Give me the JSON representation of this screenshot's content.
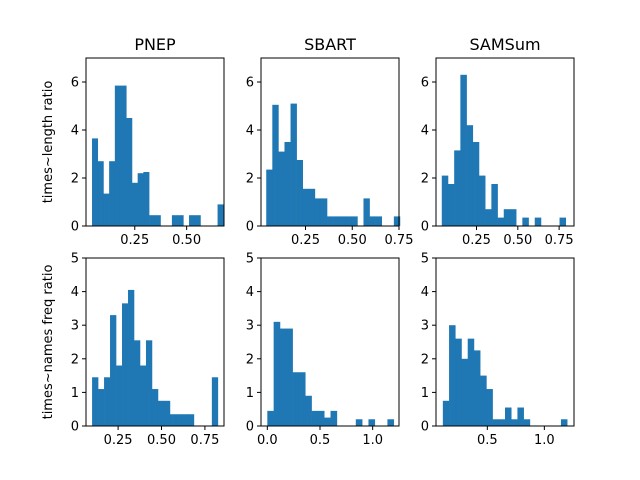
{
  "chart_data": [
    {
      "type": "bar",
      "title": "PNEP",
      "ylabel": "times~length ratio",
      "ylim": [
        0,
        7
      ],
      "yticks": [
        0,
        2,
        4,
        6
      ],
      "xlim": [
        0.015,
        0.68
      ],
      "xticks": [
        0.25,
        0.5
      ],
      "xtick_labels": [
        "0.25",
        "0.50"
      ],
      "bins": [
        0.044,
        0.0715,
        0.099,
        0.1265,
        0.154,
        0.1815,
        0.209,
        0.2365,
        0.264,
        0.2915,
        0.319,
        0.3465,
        0.374,
        0.4015,
        0.429,
        0.4565,
        0.484,
        0.5115,
        0.539,
        0.5665,
        0.594,
        0.6215,
        0.649
      ],
      "values": [
        3.65,
        2.7,
        1.35,
        2.7,
        5.85,
        5.85,
        4.5,
        1.8,
        2.2,
        2.25,
        0.45,
        0.45,
        0,
        0,
        0.45,
        0.45,
        0,
        0.45,
        0.45,
        0,
        0,
        0,
        0.9
      ]
    },
    {
      "type": "bar",
      "title": "SBART",
      "ylabel": "",
      "ylim": [
        0,
        7
      ],
      "yticks": [
        0,
        2,
        4,
        6
      ],
      "xlim": [
        0.012,
        0.75
      ],
      "xticks": [
        0.25,
        0.5,
        0.75
      ],
      "xtick_labels": [
        "0.25",
        "0.50",
        "0.75"
      ],
      "bins": [
        0.04,
        0.0725,
        0.105,
        0.1375,
        0.17,
        0.2025,
        0.235,
        0.2675,
        0.3,
        0.3325,
        0.365,
        0.3975,
        0.43,
        0.4625,
        0.495,
        0.5275,
        0.56,
        0.5925,
        0.625,
        0.6575,
        0.69,
        0.7225
      ],
      "values": [
        2.35,
        5.05,
        3.1,
        3.5,
        5.1,
        2.75,
        1.55,
        1.55,
        1.15,
        1.15,
        0.4,
        0.4,
        0.4,
        0.4,
        0.4,
        0,
        1.15,
        0.4,
        0.4,
        0,
        0,
        0.4
      ]
    },
    {
      "type": "bar",
      "title": "SAMSum",
      "ylabel": "",
      "ylim": [
        0,
        7
      ],
      "yticks": [
        0,
        2,
        4,
        6
      ],
      "xlim": [
        0.005,
        0.84
      ],
      "xticks": [
        0.25,
        0.5,
        0.75
      ],
      "xtick_labels": [
        "0.25",
        "0.50",
        "0.75"
      ],
      "bins": [
        0.04,
        0.0775,
        0.115,
        0.1525,
        0.19,
        0.2275,
        0.265,
        0.3025,
        0.34,
        0.3775,
        0.415,
        0.4525,
        0.49,
        0.5275,
        0.565,
        0.6025,
        0.64,
        0.6775,
        0.715,
        0.7525,
        0.79
      ],
      "values": [
        2.1,
        1.75,
        3.15,
        6.3,
        4.2,
        3.5,
        2.1,
        0.7,
        1.75,
        0.35,
        0.7,
        0.7,
        0,
        0.35,
        0,
        0.35,
        0,
        0,
        0,
        0.35,
        0
      ]
    },
    {
      "type": "bar",
      "title": "",
      "ylabel": "times~names freq ratio",
      "ylim": [
        0,
        5
      ],
      "yticks": [
        0,
        1,
        2,
        3,
        4,
        5
      ],
      "xlim": [
        0.065,
        0.86
      ],
      "xticks": [
        0.25,
        0.5,
        0.75
      ],
      "xtick_labels": [
        "0.25",
        "0.50",
        "0.75"
      ],
      "bins": [
        0.1,
        0.1345,
        0.169,
        0.2035,
        0.238,
        0.2725,
        0.307,
        0.3415,
        0.376,
        0.4105,
        0.445,
        0.4795,
        0.514,
        0.5485,
        0.583,
        0.6175,
        0.652,
        0.6865,
        0.721,
        0.7555,
        0.79
      ],
      "values": [
        1.45,
        1.1,
        1.45,
        3.3,
        1.8,
        3.65,
        4.05,
        2.55,
        1.8,
        2.55,
        1.1,
        0.75,
        0.75,
        0.35,
        0.35,
        0.35,
        0.35,
        0,
        0,
        0,
        1.45
      ]
    },
    {
      "type": "bar",
      "title": "",
      "ylabel": "",
      "ylim": [
        0,
        5
      ],
      "yticks": [
        0,
        1,
        2,
        3,
        4,
        5
      ],
      "xlim": [
        -0.06,
        1.25
      ],
      "xticks": [
        0,
        0.5,
        1
      ],
      "xtick_labels": [
        "0.0",
        "0.5",
        "1.0"
      ],
      "bins": [
        0,
        0.06,
        0.12,
        0.18,
        0.24,
        0.3,
        0.36,
        0.42,
        0.48,
        0.54,
        0.6,
        0.66,
        0.72,
        0.78,
        0.84,
        0.9,
        0.96,
        1.02,
        1.08,
        1.14
      ],
      "values": [
        0.45,
        3.1,
        2.9,
        2.9,
        1.6,
        1.6,
        0.9,
        0.45,
        0.45,
        0.25,
        0.45,
        0,
        0,
        0,
        0.2,
        0,
        0.2,
        0,
        0,
        0.2
      ]
    },
    {
      "type": "bar",
      "title": "",
      "ylabel": "",
      "ylim": [
        0,
        5
      ],
      "yticks": [
        0,
        1,
        2,
        3,
        4,
        5
      ],
      "xlim": [
        0.05,
        1.26
      ],
      "xticks": [
        0.5,
        1
      ],
      "xtick_labels": [
        "0.5",
        "1.0"
      ],
      "bins": [
        0.11,
        0.1645,
        0.219,
        0.2735,
        0.328,
        0.3825,
        0.437,
        0.4915,
        0.546,
        0.6005,
        0.655,
        0.7095,
        0.764,
        0.8185,
        0.873,
        0.9275,
        0.982,
        1.0365,
        1.091,
        1.1455
      ],
      "values": [
        0.75,
        3.0,
        2.6,
        2.0,
        2.6,
        2.25,
        1.5,
        1.1,
        0.2,
        0.2,
        0.55,
        0.2,
        0.55,
        0.2,
        0,
        0,
        0,
        0,
        0,
        0.2
      ]
    }
  ]
}
